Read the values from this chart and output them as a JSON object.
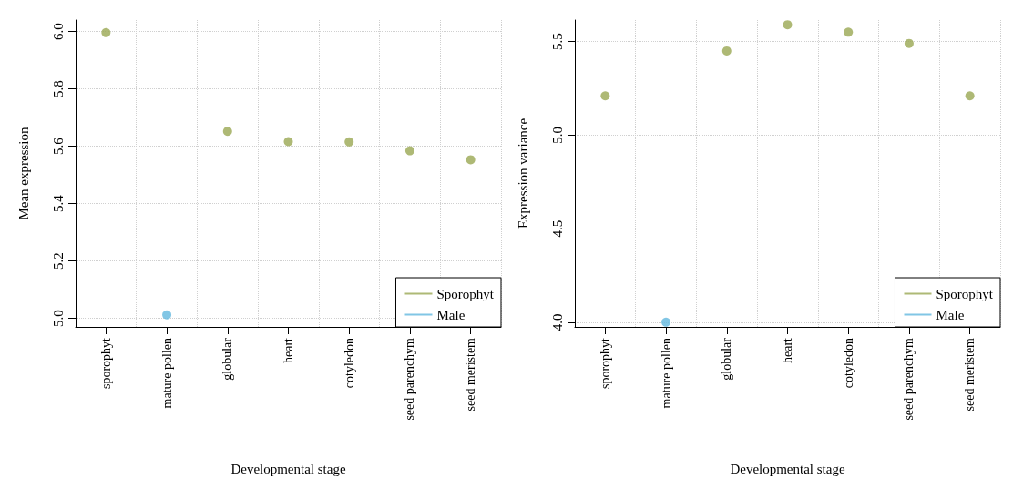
{
  "chart_data": [
    {
      "type": "scatter",
      "xlabel": "Developmental stage",
      "ylabel": "Mean expression",
      "categories": [
        "sporophyt",
        "mature pollen",
        "globular",
        "heart",
        "cotyledon",
        "seed parenchym",
        "seed meristem"
      ],
      "series": [
        {
          "name": "Sporophyt",
          "color": "#9aa852",
          "values": [
            5.996,
            null,
            5.652,
            5.616,
            5.615,
            5.584,
            5.553
          ]
        },
        {
          "name": "Male",
          "color": "#62b8de",
          "values": [
            null,
            5.012,
            null,
            null,
            null,
            null,
            null
          ]
        }
      ],
      "ylim": [
        4.97,
        6.04
      ],
      "yticks": [
        {
          "value": 5,
          "label": "5.0"
        },
        {
          "value": 5.2,
          "label": "5.2"
        },
        {
          "value": 5.4,
          "label": "5.4"
        },
        {
          "value": 5.6,
          "label": "5.6"
        },
        {
          "value": 5.8,
          "label": "5.8"
        },
        {
          "value": 6,
          "label": "6.0"
        }
      ],
      "grid": true,
      "legend": "bottom right",
      "marker": "circle"
    },
    {
      "type": "scatter",
      "xlabel": "Developmental stage",
      "ylabel": "Expression variance",
      "categories": [
        "sporophyt",
        "mature pollen",
        "globular",
        "heart",
        "cotyledon",
        "seed parenchym",
        "seed meristem"
      ],
      "series": [
        {
          "name": "Sporophyt",
          "color": "#9aa852",
          "values": [
            5.21,
            null,
            5.45,
            5.59,
            5.55,
            5.49,
            5.21
          ]
        },
        {
          "name": "Male",
          "color": "#62b8de",
          "values": [
            null,
            4.0,
            null,
            null,
            null,
            null,
            null
          ]
        }
      ],
      "ylim": [
        3.975,
        5.615
      ],
      "yticks": [
        {
          "value": 4,
          "label": "4.0"
        },
        {
          "value": 4.5,
          "label": "4.5"
        },
        {
          "value": 5,
          "label": "5.0"
        },
        {
          "value": 5.5,
          "label": "5.5"
        }
      ],
      "grid": true,
      "legend": "bottom right",
      "marker": "circle"
    }
  ]
}
